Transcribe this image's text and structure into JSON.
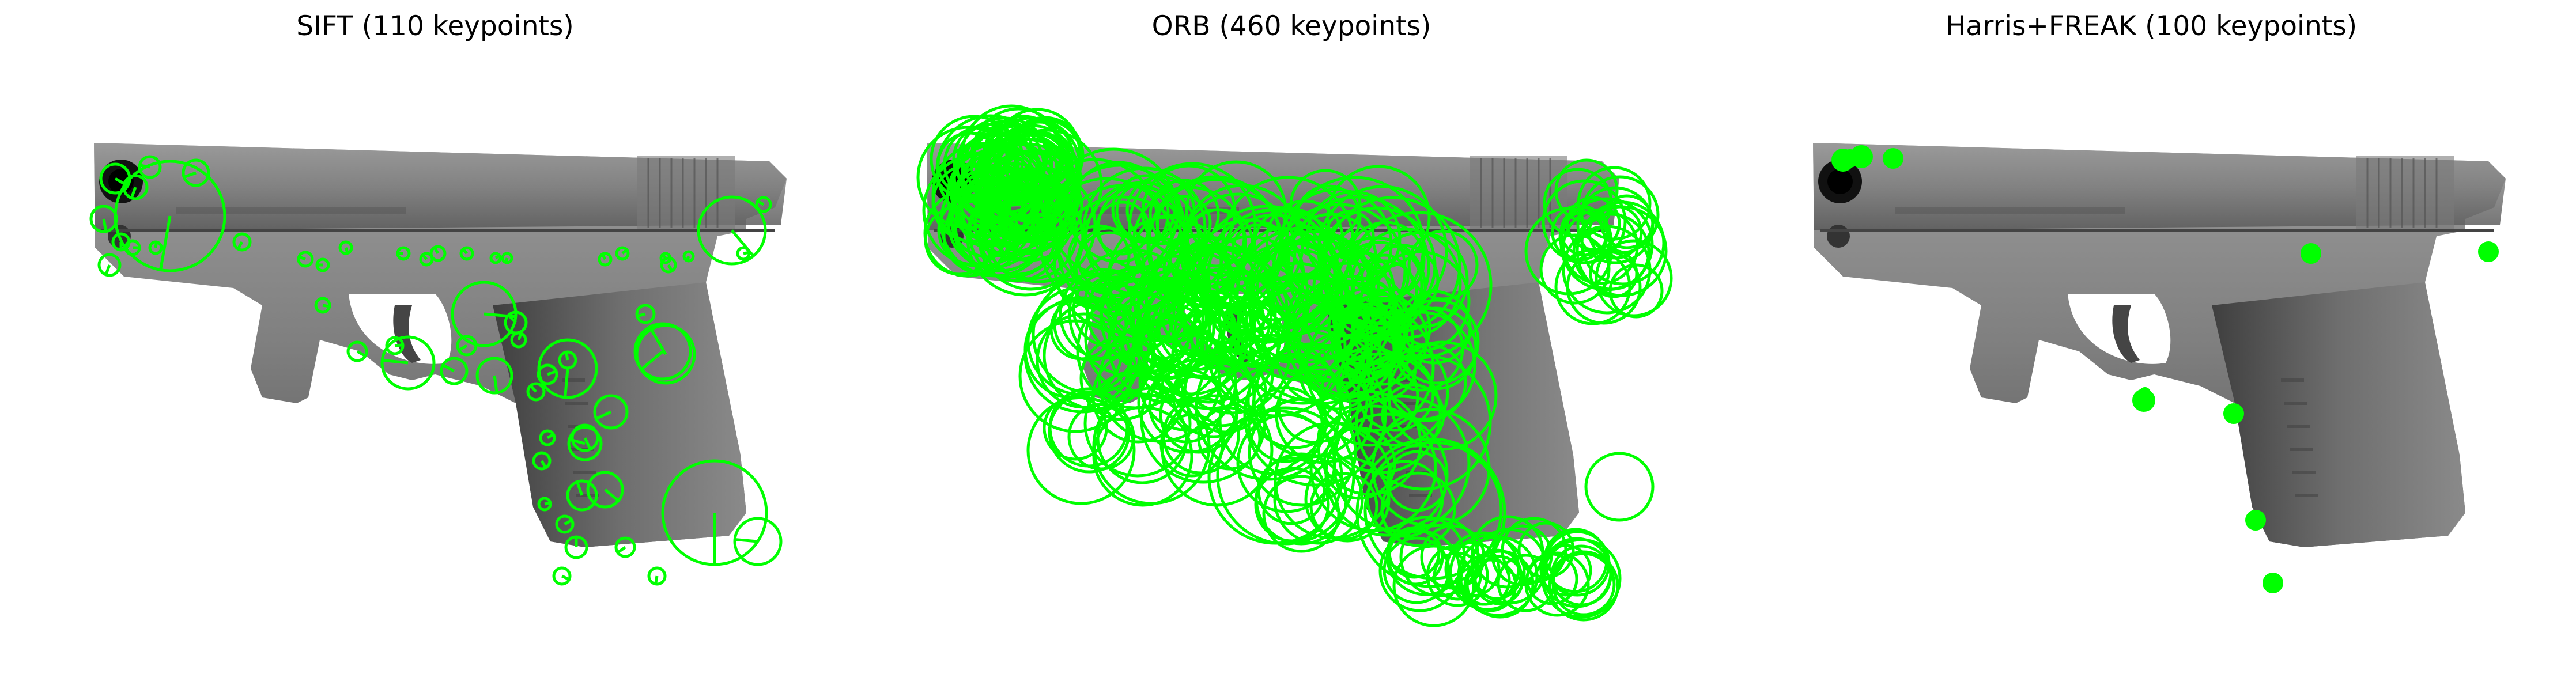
{
  "panels": [
    {
      "title": "SIFT (110 keypoints)"
    },
    {
      "title": "ORB (460 keypoints)"
    },
    {
      "title": "Harris+FREAK (100 keypoints)"
    }
  ],
  "colors": {
    "background": "#ffffff",
    "keypoint": "#00ff00",
    "pistol_body": "#6b6b6b",
    "pistol_slide": "#8c8c8c",
    "pistol_dark": "#3a3a3a"
  }
}
